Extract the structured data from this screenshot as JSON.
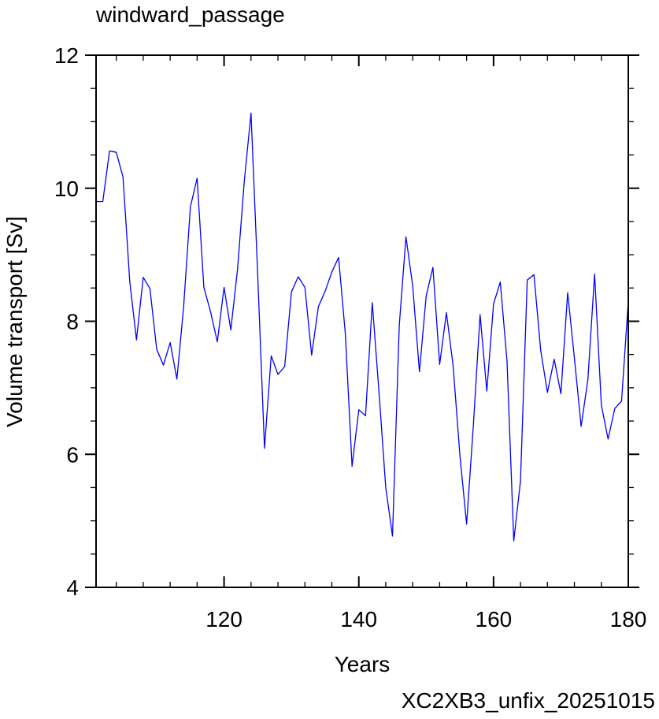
{
  "colors": {
    "series": "#0000ff",
    "footer": "#0000ff",
    "axis": "#000000",
    "background": "#ffffff"
  },
  "footer_text": "XC2XB3_unfix_20251015",
  "chart_data": {
    "type": "line",
    "title": "windward_passage",
    "xlabel": "Years",
    "ylabel": "Volume transport [Sv]",
    "xlim": [
      101,
      180
    ],
    "ylim": [
      4,
      12
    ],
    "xticks": [
      120,
      140,
      160,
      180
    ],
    "yticks": [
      4,
      6,
      8,
      10,
      12
    ],
    "grid": false,
    "series": [
      {
        "x": [
          101,
          102,
          103,
          104,
          105,
          106,
          107,
          108,
          109,
          110,
          111,
          112,
          113,
          114,
          115,
          116,
          117,
          118,
          119,
          120,
          121,
          122,
          123,
          124,
          125,
          126,
          127,
          128,
          129,
          130,
          131,
          132,
          133,
          134,
          135,
          136,
          137,
          138,
          139,
          140,
          141,
          142,
          143,
          144,
          145,
          146,
          147,
          148,
          149,
          150,
          151,
          152,
          153,
          154,
          155,
          156,
          157,
          158,
          159,
          160,
          161,
          162,
          163,
          164,
          165,
          166,
          167,
          168,
          169,
          170,
          171,
          172,
          173,
          174,
          175,
          176,
          177,
          178,
          179,
          180
        ],
        "values": [
          9.8,
          9.8,
          10.56,
          10.54,
          10.17,
          8.6,
          7.72,
          8.66,
          8.49,
          7.58,
          7.34,
          7.68,
          7.13,
          8.22,
          9.72,
          10.15,
          8.51,
          8.14,
          7.69,
          8.51,
          7.87,
          8.78,
          10.1,
          11.13,
          8.68,
          6.09,
          7.48,
          7.2,
          7.32,
          8.44,
          8.67,
          8.51,
          7.49,
          8.22,
          8.45,
          8.74,
          8.96,
          7.81,
          5.82,
          6.67,
          6.58,
          8.28,
          6.93,
          5.5,
          4.77,
          7.93,
          9.27,
          8.53,
          7.24,
          8.38,
          8.81,
          7.35,
          8.13,
          7.33,
          5.99,
          4.95,
          6.43,
          8.1,
          6.95,
          8.26,
          8.59,
          7.4,
          4.7,
          5.6,
          8.62,
          8.7,
          7.56,
          6.93,
          7.43,
          6.91,
          8.43,
          7.45,
          6.42,
          7.12,
          8.71,
          6.74,
          6.23,
          6.69,
          6.8,
          8.3
        ]
      }
    ]
  }
}
